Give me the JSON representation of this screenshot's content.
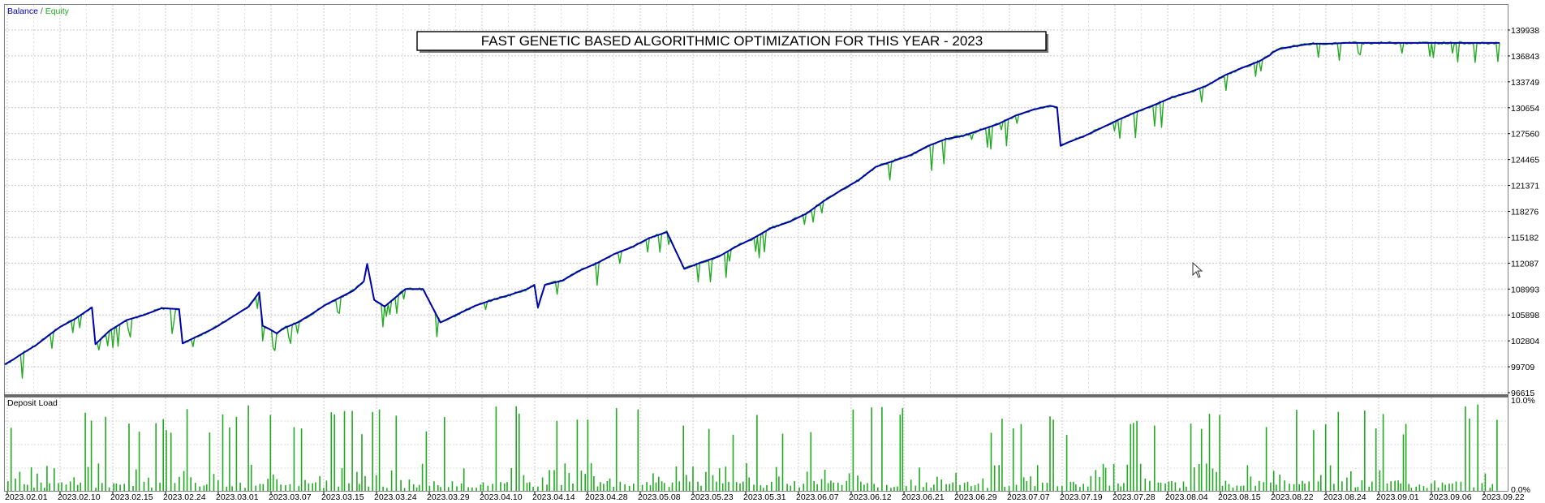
{
  "colors": {
    "balance": "#0000ad",
    "equity": "#22aa22",
    "deposit_load": "#22aa22",
    "grid": "#c8c8c8",
    "separator": "#666666"
  },
  "chart_data": [
    {
      "type": "line",
      "name": "balance-equity",
      "legend": {
        "balance_label": "Balance",
        "separator": " / ",
        "equity_label": "Equity",
        "placement": "top-left"
      },
      "title": "FAST GENETIC BASED ALGORITHMIC OPTIMIZATION FOR THIS YEAR - 2023",
      "ylim": [
        96615,
        139938
      ],
      "y_ticks": [
        "139938",
        "136843",
        "133749",
        "130654",
        "127560",
        "124465",
        "121371",
        "118276",
        "115182",
        "112087",
        "108993",
        "105898",
        "102804",
        "99709",
        "96615"
      ],
      "x_ticks": [
        "2023.02.01",
        "2023.02.10",
        "2023.02.15",
        "2023.02.24",
        "2023.03.01",
        "2023.03.07",
        "2023.03.15",
        "2023.03.24",
        "2023.03.29",
        "2023.04.10",
        "2023.04.14",
        "2023.04.28",
        "2023.05.08",
        "2023.05.23",
        "2023.05.31",
        "2023.06.07",
        "2023.06.12",
        "2023.06.21",
        "2023.06.29",
        "2023.07.07",
        "2023.07.19",
        "2023.07.28",
        "2023.08.04",
        "2023.08.15",
        "2023.08.22",
        "2023.08.24",
        "2023.09.01",
        "2023.09.06",
        "2023.09.22"
      ],
      "grid": true,
      "series": [
        {
          "name": "Balance",
          "x": [
            0,
            2.5,
            5,
            9,
            13,
            16,
            20,
            25,
            26,
            30,
            35,
            40,
            45,
            50,
            51,
            55,
            60,
            65,
            70,
            73,
            74,
            76,
            78,
            80,
            84,
            88,
            92,
            100,
            103,
            104,
            106,
            109,
            115,
            120,
            125,
            130,
            135,
            140,
            145,
            150,
            152,
            153,
            155,
            160,
            165,
            170,
            175,
            180,
            185,
            190,
            195,
            200,
            205,
            210,
            215,
            220,
            225,
            230,
            235,
            240,
            245,
            250,
            255,
            260,
            265,
            270,
            275,
            280,
            285,
            290,
            295,
            300,
            302,
            303,
            305,
            310,
            315,
            320,
            325,
            330,
            335,
            340,
            345,
            350,
            355,
            360,
            363,
            364,
            366,
            370,
            375,
            380,
            385,
            390,
            395,
            400,
            405,
            410,
            415,
            420,
            425,
            429
          ],
          "y": [
            100000,
            100600,
            101300,
            102300,
            103600,
            104500,
            105400,
            106800,
            102400,
            104000,
            105300,
            105900,
            106700,
            106600,
            102500,
            103300,
            104300,
            105600,
            106900,
            108600,
            104600,
            104200,
            103700,
            104300,
            105000,
            106000,
            107100,
            108800,
            109900,
            112000,
            107700,
            106900,
            109000,
            109000,
            105000,
            106000,
            107000,
            107700,
            108300,
            109000,
            109500,
            106800,
            109500,
            110000,
            111200,
            112100,
            113200,
            114000,
            115100,
            115800,
            111400,
            112200,
            112900,
            114100,
            115100,
            116300,
            117000,
            118000,
            119500,
            120800,
            122000,
            123600,
            124300,
            125000,
            126100,
            126900,
            127300,
            128000,
            128700,
            129700,
            130400,
            130900,
            130700,
            126100,
            126500,
            127300,
            128300,
            129300,
            130200,
            131000,
            131900,
            132500,
            133300,
            134500,
            135400,
            136200,
            136900,
            137300,
            137700,
            138000,
            138300,
            138300,
            138400,
            138400,
            138400,
            138400,
            138400,
            138400,
            138400,
            138400,
            138400,
            138400
          ]
        }
      ]
    },
    {
      "type": "bar",
      "name": "deposit-load",
      "label": "Deposit Load",
      "ylim": [
        0,
        10
      ],
      "y_ticks": [
        "10.0%",
        "0.0%"
      ],
      "grid": true
    }
  ]
}
